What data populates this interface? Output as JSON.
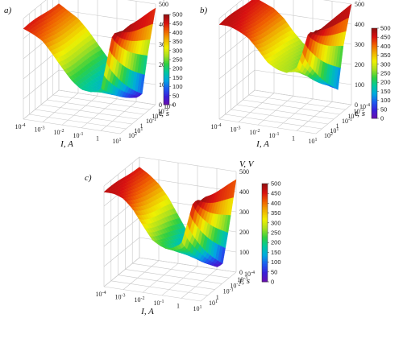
{
  "chart_data": [
    {
      "type": "surface",
      "panel_label": "a)",
      "xlabel": "I, A",
      "ylabel": "t, s",
      "zlabel": "V, V",
      "x_tick_labels": [
        "10^-4",
        "10^-3",
        "10^-2",
        "10^-1",
        "1",
        "10^1"
      ],
      "y_tick_labels": [
        "10^-4",
        "10^-3",
        "10^-2",
        "10^-1",
        "1",
        "10^1",
        "10^2"
      ],
      "z_tick_labels": [
        "0",
        "100",
        "200",
        "300",
        "400",
        "500"
      ],
      "colorbar_ticks": [
        "0",
        "50",
        "100",
        "150",
        "200",
        "250",
        "300",
        "350",
        "400",
        "450",
        "500"
      ],
      "colorscale": [
        "#6a0dad",
        "#3a1fd8",
        "#1e5af0",
        "#00a8e0",
        "#00c8a0",
        "#30d040",
        "#a8e020",
        "#f0f000",
        "#f0b000",
        "#f06000",
        "#d81010",
        "#901010"
      ],
      "zlim": [
        0,
        500
      ],
      "profile_I": [
        -4,
        -3.5,
        -3,
        -2.5,
        -2,
        -1.5,
        -1,
        -0.5,
        0,
        0.3,
        0.6,
        1
      ],
      "profile_V_short_t": [
        450,
        420,
        390,
        340,
        290,
        240,
        200,
        185,
        190,
        330,
        470,
        520
      ],
      "profile_V_long_t": [
        430,
        400,
        370,
        320,
        260,
        200,
        140,
        80,
        20,
        40,
        250,
        480
      ]
    },
    {
      "type": "surface",
      "panel_label": "b)",
      "xlabel": "I, A",
      "ylabel": "t, s",
      "zlabel": "V, V",
      "x_tick_labels": [
        "10^-4",
        "10^-3",
        "10^-2",
        "10^-1",
        "1",
        "10^1"
      ],
      "y_tick_labels": [
        "10^-4",
        "10^-3",
        "10^-2",
        "10^-1",
        "1",
        "10^1",
        "10^2"
      ],
      "z_tick_labels": [
        "0",
        "100",
        "200",
        "300",
        "400",
        "500"
      ],
      "colorbar_ticks": [
        "0",
        "50",
        "100",
        "150",
        "200",
        "250",
        "300",
        "350",
        "400",
        "450",
        "500"
      ],
      "colorscale": [
        "#6a0dad",
        "#3a1fd8",
        "#1e5af0",
        "#00a8e0",
        "#00c8a0",
        "#30d040",
        "#a8e020",
        "#f0f000",
        "#f0b000",
        "#f06000",
        "#d81010",
        "#901010"
      ],
      "zlim": [
        0,
        500
      ],
      "profile_I": [
        -4,
        -3.5,
        -3,
        -2.5,
        -2,
        -1.5,
        -1,
        -0.5,
        0,
        0.3,
        0.6,
        1
      ],
      "profile_V_short_t": [
        470,
        460,
        440,
        420,
        380,
        330,
        300,
        280,
        300,
        380,
        480,
        520
      ],
      "profile_V_long_t": [
        460,
        440,
        420,
        380,
        320,
        270,
        240,
        200,
        80,
        60,
        300,
        500
      ]
    },
    {
      "type": "surface",
      "panel_label": "c)",
      "xlabel": "I, A",
      "ylabel": "t, s",
      "zlabel": "V, V",
      "x_tick_labels": [
        "10^-4",
        "10^-3",
        "10^-2",
        "10^-1",
        "1",
        "10^1"
      ],
      "y_tick_labels": [
        "10^-4",
        "10^-3",
        "10^-2",
        "10^-1",
        "1",
        "10^1"
      ],
      "z_tick_labels": [
        "0",
        "100",
        "200",
        "300",
        "400",
        "500"
      ],
      "colorbar_ticks": [
        "0",
        "50",
        "100",
        "150",
        "200",
        "250",
        "300",
        "350",
        "400",
        "450",
        "500"
      ],
      "colorscale": [
        "#6a0dad",
        "#3a1fd8",
        "#1e5af0",
        "#00a8e0",
        "#00c8a0",
        "#30d040",
        "#a8e020",
        "#f0f000",
        "#f0b000",
        "#f06000",
        "#d81010",
        "#901010"
      ],
      "zlim": [
        0,
        500
      ],
      "profile_I": [
        -4,
        -3.5,
        -3,
        -2.5,
        -2,
        -1.5,
        -1,
        -0.5,
        0,
        0.3,
        0.6,
        1
      ],
      "profile_V_short_t": [
        470,
        460,
        440,
        400,
        340,
        280,
        250,
        240,
        260,
        360,
        470,
        510
      ],
      "profile_V_long_t": [
        450,
        420,
        380,
        320,
        240,
        160,
        90,
        40,
        10,
        30,
        200,
        460
      ]
    }
  ]
}
